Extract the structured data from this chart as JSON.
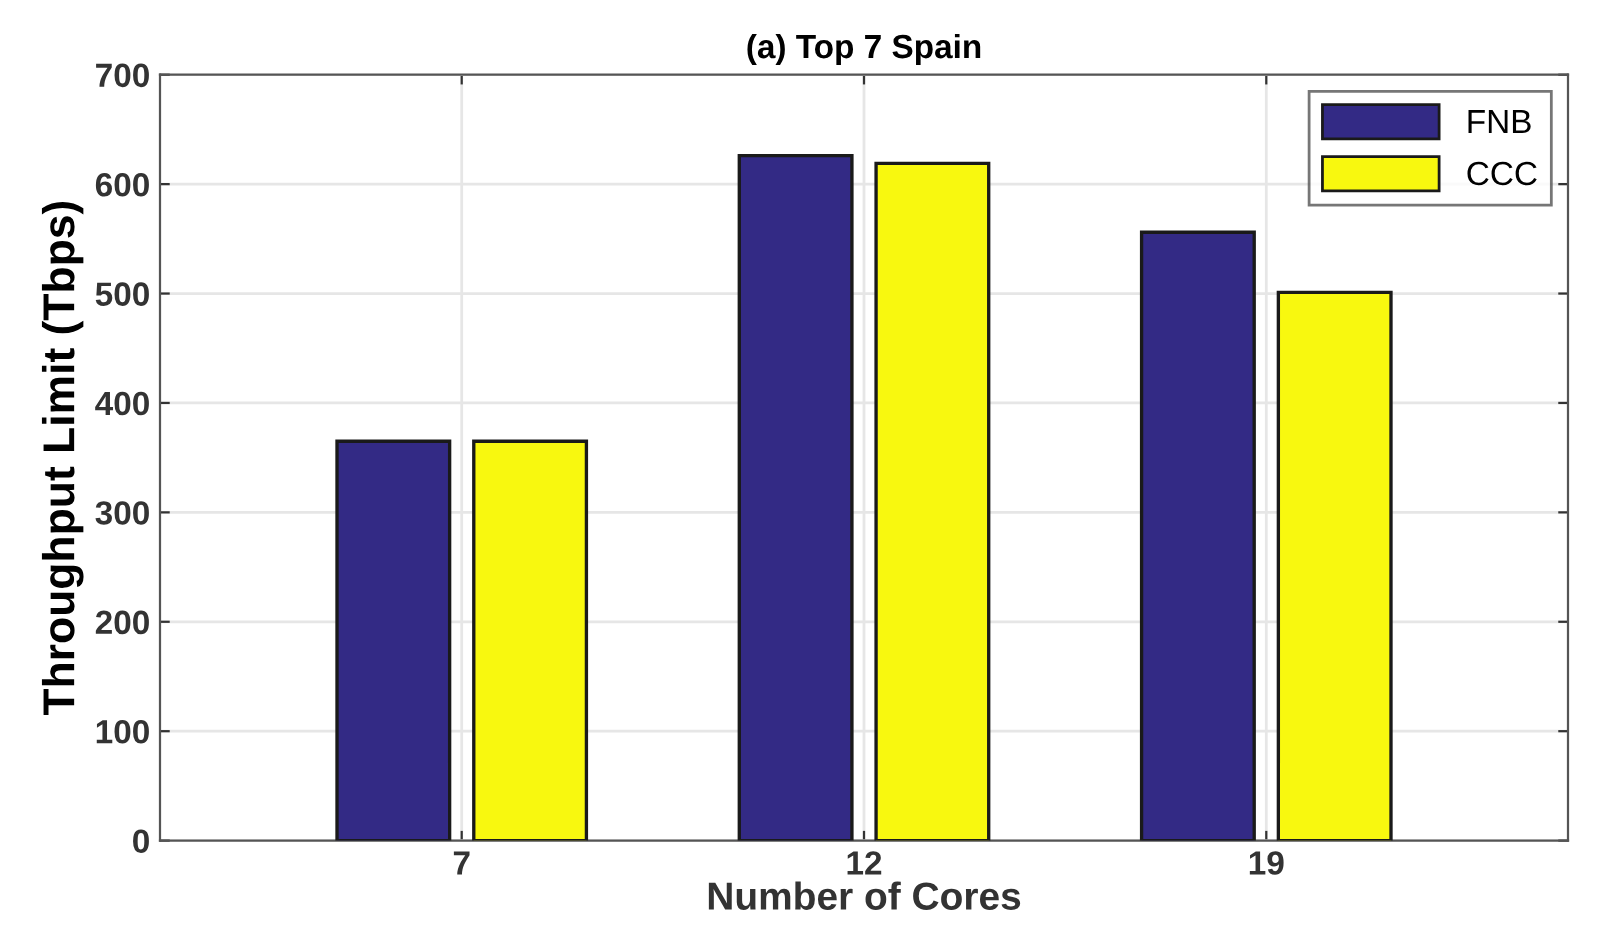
{
  "chart_data": {
    "type": "bar",
    "title": "(a) Top 7 Spain",
    "xlabel": "Number of Cores",
    "ylabel": "Throughput Limit (Tbps)",
    "categories": [
      "7",
      "12",
      "19"
    ],
    "series": [
      {
        "name": "FNB",
        "color": "#332a85",
        "values": [
          365,
          626,
          556
        ]
      },
      {
        "name": "CCC",
        "color": "#f8f80f",
        "values": [
          365,
          619,
          501
        ]
      }
    ],
    "ylim": [
      0,
      700
    ],
    "yticks": [
      0,
      100,
      200,
      300,
      400,
      500,
      600,
      700
    ],
    "grid": true,
    "legend": "top right"
  }
}
